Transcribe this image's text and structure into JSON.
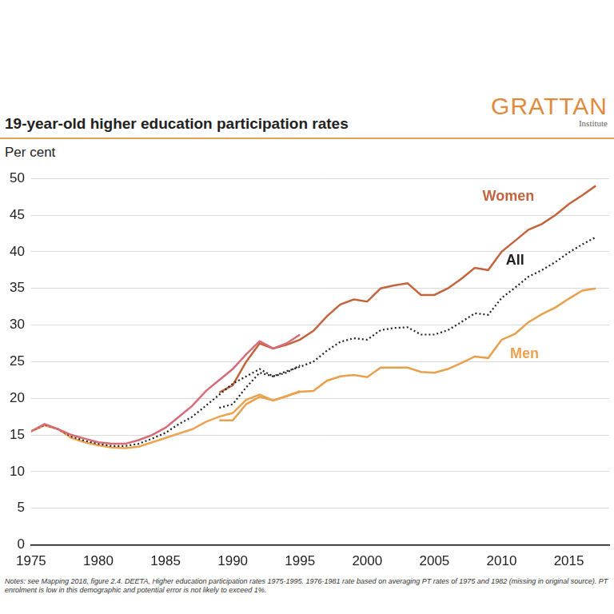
{
  "chart_data": {
    "type": "line",
    "title": "19-year-old higher education participation rates",
    "y_label": "Per cent",
    "source_brand": "GRATTAN",
    "source_brand_sub": "Institute",
    "notes": "Notes: see Mapping 2018, figure 2.4. DEETA, Higher education participation rates 1975-1995. 1976-1981 rate based on averaging PT rates of 1975 and 1982 (missing in original source). PT enrolment is low in this demographic and potential error is not likely to exceed 1%.",
    "x": [
      1975,
      1976,
      1977,
      1978,
      1979,
      1980,
      1981,
      1982,
      1983,
      1984,
      1985,
      1986,
      1987,
      1988,
      1989,
      1990,
      1991,
      1992,
      1993,
      1994,
      1995,
      1996,
      1997,
      1998,
      1999,
      2000,
      2001,
      2002,
      2003,
      2004,
      2005,
      2006,
      2007,
      2008,
      2009,
      2010,
      2011,
      2012,
      2013,
      2014,
      2015,
      2016,
      2017
    ],
    "series": [
      {
        "name": "Women",
        "color": "#d86b78",
        "line_style": "solid",
        "marker": "none",
        "values": [
          15.5,
          16.5,
          15.8,
          15,
          14.5,
          14,
          13.8,
          13.8,
          14.3,
          15,
          16,
          17.5,
          19,
          21,
          22.5,
          24,
          26,
          27.8,
          26.8,
          27.5,
          28.7,
          null,
          null,
          null,
          null,
          null,
          null,
          null,
          null,
          null,
          null,
          null,
          null,
          null,
          null,
          null,
          null,
          null,
          null,
          null,
          null,
          null,
          null
        ]
      },
      {
        "name": "All",
        "color": "#222222",
        "line_style": "dotted",
        "marker": "none",
        "values": [
          15.5,
          16.4,
          15.8,
          14.8,
          14.2,
          13.8,
          13.5,
          13.5,
          13.8,
          14.5,
          15.3,
          16.5,
          17.5,
          19,
          20.5,
          22,
          23,
          24,
          23,
          23.5,
          24.5,
          null,
          null,
          null,
          null,
          null,
          null,
          null,
          null,
          null,
          null,
          null,
          null,
          null,
          null,
          null,
          null,
          null,
          null,
          null,
          null,
          null,
          null
        ]
      },
      {
        "name": "Men",
        "color": "#eda24f",
        "line_style": "solid",
        "marker": "none",
        "values": [
          15.5,
          16.3,
          15.8,
          14.6,
          14,
          13.6,
          13.3,
          13.2,
          13.4,
          14,
          14.6,
          15.2,
          15.8,
          16.8,
          17.5,
          18,
          19.8,
          20.5,
          19.7,
          20.3,
          21,
          null,
          null,
          null,
          null,
          null,
          null,
          null,
          null,
          null,
          null,
          null,
          null,
          null,
          null,
          null,
          null,
          null,
          null,
          null,
          null,
          null,
          null
        ]
      },
      {
        "name": "Women",
        "color": "#c4643c",
        "line_style": "solid",
        "marker": "none",
        "values": [
          null,
          null,
          null,
          null,
          null,
          null,
          null,
          null,
          null,
          null,
          null,
          null,
          null,
          null,
          20.8,
          21.8,
          25,
          27.5,
          26.8,
          27.3,
          28,
          29.2,
          31.2,
          32.8,
          33.5,
          33.2,
          35,
          35.4,
          35.7,
          34.1,
          34.1,
          35,
          36.3,
          37.8,
          37.5,
          40,
          41.5,
          43,
          43.8,
          45,
          46.5,
          47.7,
          49
        ]
      },
      {
        "name": "All",
        "color": "#222222",
        "line_style": "dotted",
        "marker": "none",
        "values": [
          null,
          null,
          null,
          null,
          null,
          null,
          null,
          null,
          null,
          null,
          null,
          null,
          null,
          null,
          18.7,
          19.2,
          21.5,
          23.5,
          23,
          23.7,
          24.3,
          25,
          26.5,
          27.7,
          28.2,
          28,
          29.3,
          29.6,
          29.7,
          28.7,
          28.7,
          29.3,
          30.4,
          31.6,
          31.4,
          33.7,
          35.1,
          36.6,
          37.5,
          38.6,
          39.9,
          41,
          42
        ]
      },
      {
        "name": "Men",
        "color": "#e9a04d",
        "line_style": "solid",
        "marker": "none",
        "values": [
          null,
          null,
          null,
          null,
          null,
          null,
          null,
          null,
          null,
          null,
          null,
          null,
          null,
          null,
          17,
          17,
          19.2,
          20.2,
          19.7,
          20.3,
          20.9,
          21,
          22.4,
          23,
          23.2,
          22.9,
          24.2,
          24.2,
          24.2,
          23.6,
          23.5,
          24,
          24.8,
          25.7,
          25.5,
          28,
          28.8,
          30.4,
          31.5,
          32.4,
          33.6,
          34.7,
          35
        ]
      }
    ],
    "annotations": [
      {
        "text": "Women",
        "x": 2010.5,
        "y": 47.5,
        "color": "#c4643c"
      },
      {
        "text": "All",
        "x": 2011,
        "y": 38.8,
        "color": "#222222"
      },
      {
        "text": "Men",
        "x": 2011.7,
        "y": 26,
        "color": "#eda24f"
      }
    ],
    "xlim": [
      1975,
      2018
    ],
    "xticks": [
      1975,
      1980,
      1985,
      1990,
      1995,
      2000,
      2005,
      2010,
      2015
    ],
    "ylim": [
      0,
      50
    ],
    "yticks": [
      0,
      5,
      10,
      15,
      20,
      25,
      30,
      35,
      40,
      45,
      50
    ],
    "grid": true
  }
}
